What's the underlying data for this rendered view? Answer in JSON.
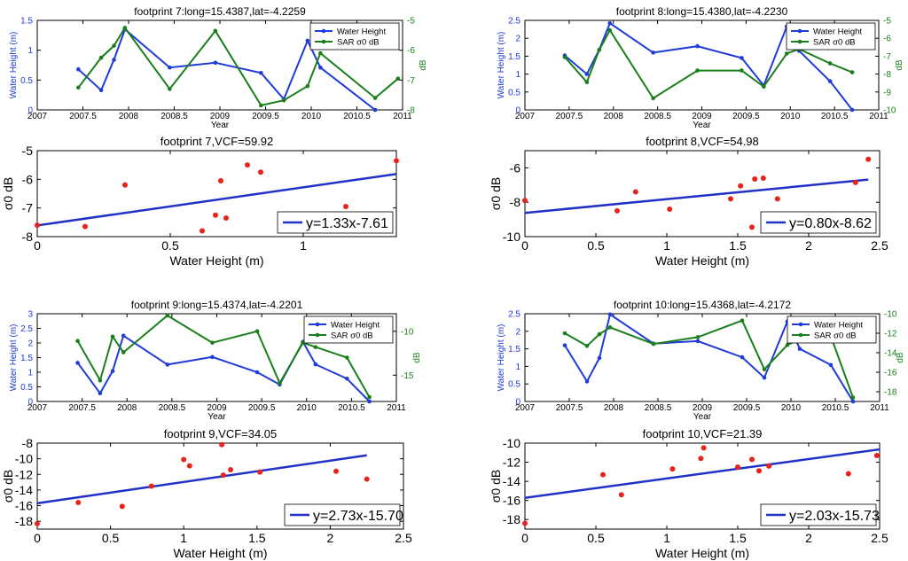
{
  "colors": {
    "water": "#1f3bd8",
    "sar": "#1a7f1a",
    "scatter": "#e8231a",
    "fit": "#2030c8",
    "axis": "#000000"
  },
  "chart_data": [
    {
      "id": "fp7_ts",
      "type": "line",
      "title": "footprint 7:long=15.4387,lat=-4.2259",
      "xlabel": "Year",
      "ylabel": "Water Height (m)",
      "y2label": "dB",
      "xlim": [
        2007,
        2011
      ],
      "xticks": [
        2007,
        2007.5,
        2008,
        2008.5,
        2009,
        2009.5,
        2010,
        2010.5,
        2011
      ],
      "ylim": [
        0,
        1.5
      ],
      "yticks": [
        0,
        0.5,
        1,
        1.5
      ],
      "y2lim": [
        -8,
        -5
      ],
      "y2ticks": [
        -8,
        -7,
        -6,
        -5
      ],
      "legend": [
        "Water Height",
        "SAR σ0 dB"
      ],
      "legend_position": "top-right",
      "series": [
        {
          "name": "Water Height",
          "axis": "left",
          "x": [
            2007.45,
            2007.7,
            2007.84,
            2007.96,
            2008.45,
            2008.95,
            2009.45,
            2009.7,
            2009.96,
            2010.1,
            2010.7
          ],
          "y": [
            0.68,
            0.33,
            0.84,
            1.35,
            0.71,
            0.79,
            0.62,
            0.18,
            1.16,
            0.71,
            0.0
          ]
        },
        {
          "name": "SAR σ0 dB",
          "axis": "right",
          "x": [
            2007.45,
            2007.7,
            2007.84,
            2007.96,
            2008.45,
            2008.95,
            2009.45,
            2009.7,
            2009.96,
            2010.1,
            2010.7,
            2010.95
          ],
          "y": [
            -7.25,
            -6.25,
            -5.85,
            -5.25,
            -7.3,
            -5.35,
            -7.85,
            -7.68,
            -7.2,
            -6.1,
            -7.6,
            -6.95
          ]
        }
      ]
    },
    {
      "id": "fp8_ts",
      "type": "line",
      "title": "footprint 8:long=15.4380,lat=-4.2230",
      "xlabel": "Year",
      "ylabel": "Water Height (m)",
      "y2label": "dB",
      "xlim": [
        2007,
        2011
      ],
      "xticks": [
        2007,
        2007.5,
        2008,
        2008.5,
        2009,
        2009.5,
        2010,
        2010.5,
        2011
      ],
      "ylim": [
        0,
        2.5
      ],
      "yticks": [
        0,
        0.5,
        1,
        1.5,
        2,
        2.5
      ],
      "y2lim": [
        -10,
        -5
      ],
      "y2ticks": [
        -10,
        -9,
        -8,
        -7,
        -6,
        -5
      ],
      "legend": [
        "Water Height",
        "SAR σ0 dB"
      ],
      "legend_position": "top-right",
      "series": [
        {
          "name": "Water Height",
          "axis": "left",
          "x": [
            2007.45,
            2007.7,
            2007.84,
            2007.96,
            2008.45,
            2008.95,
            2009.45,
            2009.7,
            2009.96,
            2010.1,
            2010.45,
            2010.7
          ],
          "y": [
            1.52,
            1.0,
            1.68,
            2.42,
            1.6,
            1.78,
            1.45,
            0.68,
            2.33,
            1.65,
            0.8,
            0.0
          ]
        },
        {
          "name": "SAR σ0 dB",
          "axis": "right",
          "x": [
            2007.45,
            2007.7,
            2007.84,
            2007.96,
            2008.45,
            2008.95,
            2009.45,
            2009.7,
            2009.96,
            2010.1,
            2010.45,
            2010.7
          ],
          "y": [
            -7.05,
            -8.45,
            -6.65,
            -5.55,
            -9.35,
            -7.8,
            -7.8,
            -8.7,
            -6.85,
            -6.6,
            -7.4,
            -7.9
          ]
        }
      ]
    },
    {
      "id": "fp7_sc",
      "type": "scatter",
      "title": "footprint 7,VCF=59.92",
      "xlabel": "Water Height (m)",
      "ylabel": "σ0 dB",
      "xlim": [
        0,
        1.35
      ],
      "xticks": [
        0,
        0.5,
        1
      ],
      "ylim": [
        -8,
        -5
      ],
      "yticks": [
        -8,
        -7,
        -6,
        -5
      ],
      "fit": {
        "slope": 1.33,
        "intercept": -7.61,
        "x_range": [
          0,
          1.35
        ],
        "label": "y=1.33x-7.61"
      },
      "points": {
        "x": [
          0.0,
          0.18,
          0.33,
          0.62,
          0.67,
          0.69,
          0.71,
          0.79,
          0.84,
          1.16,
          1.35
        ],
        "y": [
          -7.6,
          -7.65,
          -6.2,
          -7.8,
          -7.25,
          -6.05,
          -7.35,
          -5.5,
          -5.75,
          -6.95,
          -5.35
        ]
      }
    },
    {
      "id": "fp8_sc",
      "type": "scatter",
      "title": "footprint 8,VCF=54.98",
      "xlabel": "Water Height (m)",
      "ylabel": "σ0 dB",
      "xlim": [
        0,
        2.5
      ],
      "xticks": [
        0,
        0.5,
        1,
        1.5,
        2,
        2.5
      ],
      "ylim": [
        -10,
        -5
      ],
      "yticks": [
        -10,
        -8,
        -6
      ],
      "fit": {
        "slope": 0.8,
        "intercept": -8.62,
        "x_range": [
          0,
          2.42
        ],
        "label": "y=0.80x-8.62"
      },
      "points": {
        "x": [
          0.0,
          0.65,
          0.78,
          1.02,
          1.45,
          1.52,
          1.6,
          1.62,
          1.68,
          1.78,
          2.33,
          2.42
        ],
        "y": [
          -7.9,
          -8.5,
          -7.4,
          -8.4,
          -7.8,
          -7.05,
          -9.45,
          -6.65,
          -6.6,
          -7.8,
          -6.85,
          -5.5
        ]
      }
    },
    {
      "id": "fp9_ts",
      "type": "line",
      "title": "footprint 9:long=15.4374,lat=-4.2201",
      "xlabel": "Year",
      "ylabel": "Water Height (m)",
      "y2label": "dB",
      "xlim": [
        2007,
        2011
      ],
      "xticks": [
        2007,
        2007.5,
        2008,
        2008.5,
        2009,
        2009.5,
        2010,
        2010.5,
        2011
      ],
      "ylim": [
        0,
        3
      ],
      "yticks": [
        0,
        0.5,
        1,
        1.5,
        2,
        2.5,
        3
      ],
      "y2lim": [
        -18,
        -8
      ],
      "y2ticks": [
        -15,
        -10
      ],
      "legend": [
        "Water Height",
        "SAR σ0 dB"
      ],
      "legend_position": "top-right",
      "series": [
        {
          "name": "Water Height",
          "axis": "left",
          "x": [
            2007.45,
            2007.7,
            2007.84,
            2007.96,
            2008.45,
            2008.95,
            2009.45,
            2009.7,
            2009.96,
            2010.1,
            2010.45,
            2010.7
          ],
          "y": [
            1.32,
            0.28,
            1.04,
            2.25,
            1.26,
            1.52,
            1.0,
            0.58,
            2.04,
            1.27,
            0.78,
            0.0
          ]
        },
        {
          "name": "SAR σ0 dB",
          "axis": "right",
          "x": [
            2007.45,
            2007.7,
            2007.84,
            2007.96,
            2008.45,
            2008.95,
            2009.45,
            2009.7,
            2009.96,
            2010.1,
            2010.45,
            2010.7
          ],
          "y": [
            -11.1,
            -15.6,
            -10.6,
            -12.4,
            -8.2,
            -11.3,
            -10.0,
            -15.9,
            -11.3,
            -11.8,
            -13.0,
            -17.5
          ]
        }
      ]
    },
    {
      "id": "fp10_ts",
      "type": "line",
      "title": "footprint 10:long=15.4368,lat=-4.2172",
      "xlabel": "Year",
      "ylabel": "Water Height (m)",
      "y2label": "dB",
      "xlim": [
        2007,
        2011
      ],
      "xticks": [
        2007,
        2007.5,
        2008,
        2008.5,
        2009,
        2009.5,
        2010,
        2010.5,
        2011
      ],
      "ylim": [
        0,
        2.5
      ],
      "yticks": [
        0,
        0.5,
        1,
        1.5,
        2,
        2.5
      ],
      "y2lim": [
        -19,
        -10
      ],
      "y2ticks": [
        -18,
        -16,
        -14,
        -12,
        -10
      ],
      "legend": [
        "Water Height",
        "SAR σ0 dB"
      ],
      "legend_position": "top-right",
      "series": [
        {
          "name": "Water Height",
          "axis": "left",
          "x": [
            2007.45,
            2007.7,
            2007.84,
            2007.96,
            2008.45,
            2008.95,
            2009.45,
            2009.7,
            2009.96,
            2010.1,
            2010.45,
            2010.7
          ],
          "y": [
            1.6,
            0.57,
            1.24,
            2.48,
            1.65,
            1.72,
            1.26,
            0.68,
            2.28,
            1.5,
            1.04,
            0.0
          ]
        },
        {
          "name": "SAR σ0 dB",
          "axis": "right",
          "x": [
            2007.45,
            2007.7,
            2007.84,
            2007.96,
            2008.45,
            2008.95,
            2009.45,
            2009.7,
            2009.96,
            2010.1,
            2010.45,
            2010.7
          ],
          "y": [
            -12.0,
            -13.3,
            -12.1,
            -11.4,
            -13.1,
            -12.4,
            -10.7,
            -15.7,
            -13.2,
            -12.6,
            -12.3,
            -18.6
          ]
        }
      ]
    },
    {
      "id": "fp9_sc",
      "type": "scatter",
      "title": "footprint 9,VCF=34.05",
      "xlabel": "Water Height (m)",
      "ylabel": "σ0 dB",
      "xlim": [
        0,
        2.5
      ],
      "xticks": [
        0,
        0.5,
        1,
        1.5,
        2,
        2.5
      ],
      "ylim": [
        -19,
        -8
      ],
      "yticks": [
        -18,
        -16,
        -14,
        -12,
        -10,
        -8
      ],
      "fit": {
        "slope": 2.73,
        "intercept": -15.7,
        "x_range": [
          0,
          2.25
        ],
        "label": "y=2.73x-15.70"
      },
      "points": {
        "x": [
          0.0,
          0.28,
          0.58,
          0.78,
          1.0,
          1.04,
          1.26,
          1.27,
          1.32,
          1.52,
          2.04,
          2.25
        ],
        "y": [
          -18.3,
          -15.6,
          -16.1,
          -13.5,
          -10.1,
          -10.9,
          -8.2,
          -12.1,
          -11.4,
          -11.7,
          -11.6,
          -12.6
        ]
      }
    },
    {
      "id": "fp10_sc",
      "type": "scatter",
      "title": "footprint 10,VCF=21.39",
      "xlabel": "Water Height (m)",
      "ylabel": "σ0 dB",
      "xlim": [
        0,
        2.5
      ],
      "xticks": [
        0,
        0.5,
        1,
        1.5,
        2,
        2.5
      ],
      "ylim": [
        -19,
        -10
      ],
      "yticks": [
        -18,
        -16,
        -14,
        -12,
        -10
      ],
      "fit": {
        "slope": 2.03,
        "intercept": -15.73,
        "x_range": [
          0,
          2.5
        ],
        "label": "y=2.03x-15.73"
      },
      "points": {
        "x": [
          0.0,
          0.55,
          0.68,
          1.04,
          1.24,
          1.26,
          1.5,
          1.6,
          1.65,
          1.72,
          2.28,
          2.48
        ],
        "y": [
          -18.4,
          -13.3,
          -15.4,
          -12.7,
          -11.6,
          -10.5,
          -12.5,
          -11.7,
          -12.9,
          -12.4,
          -13.2,
          -11.3
        ]
      }
    }
  ]
}
